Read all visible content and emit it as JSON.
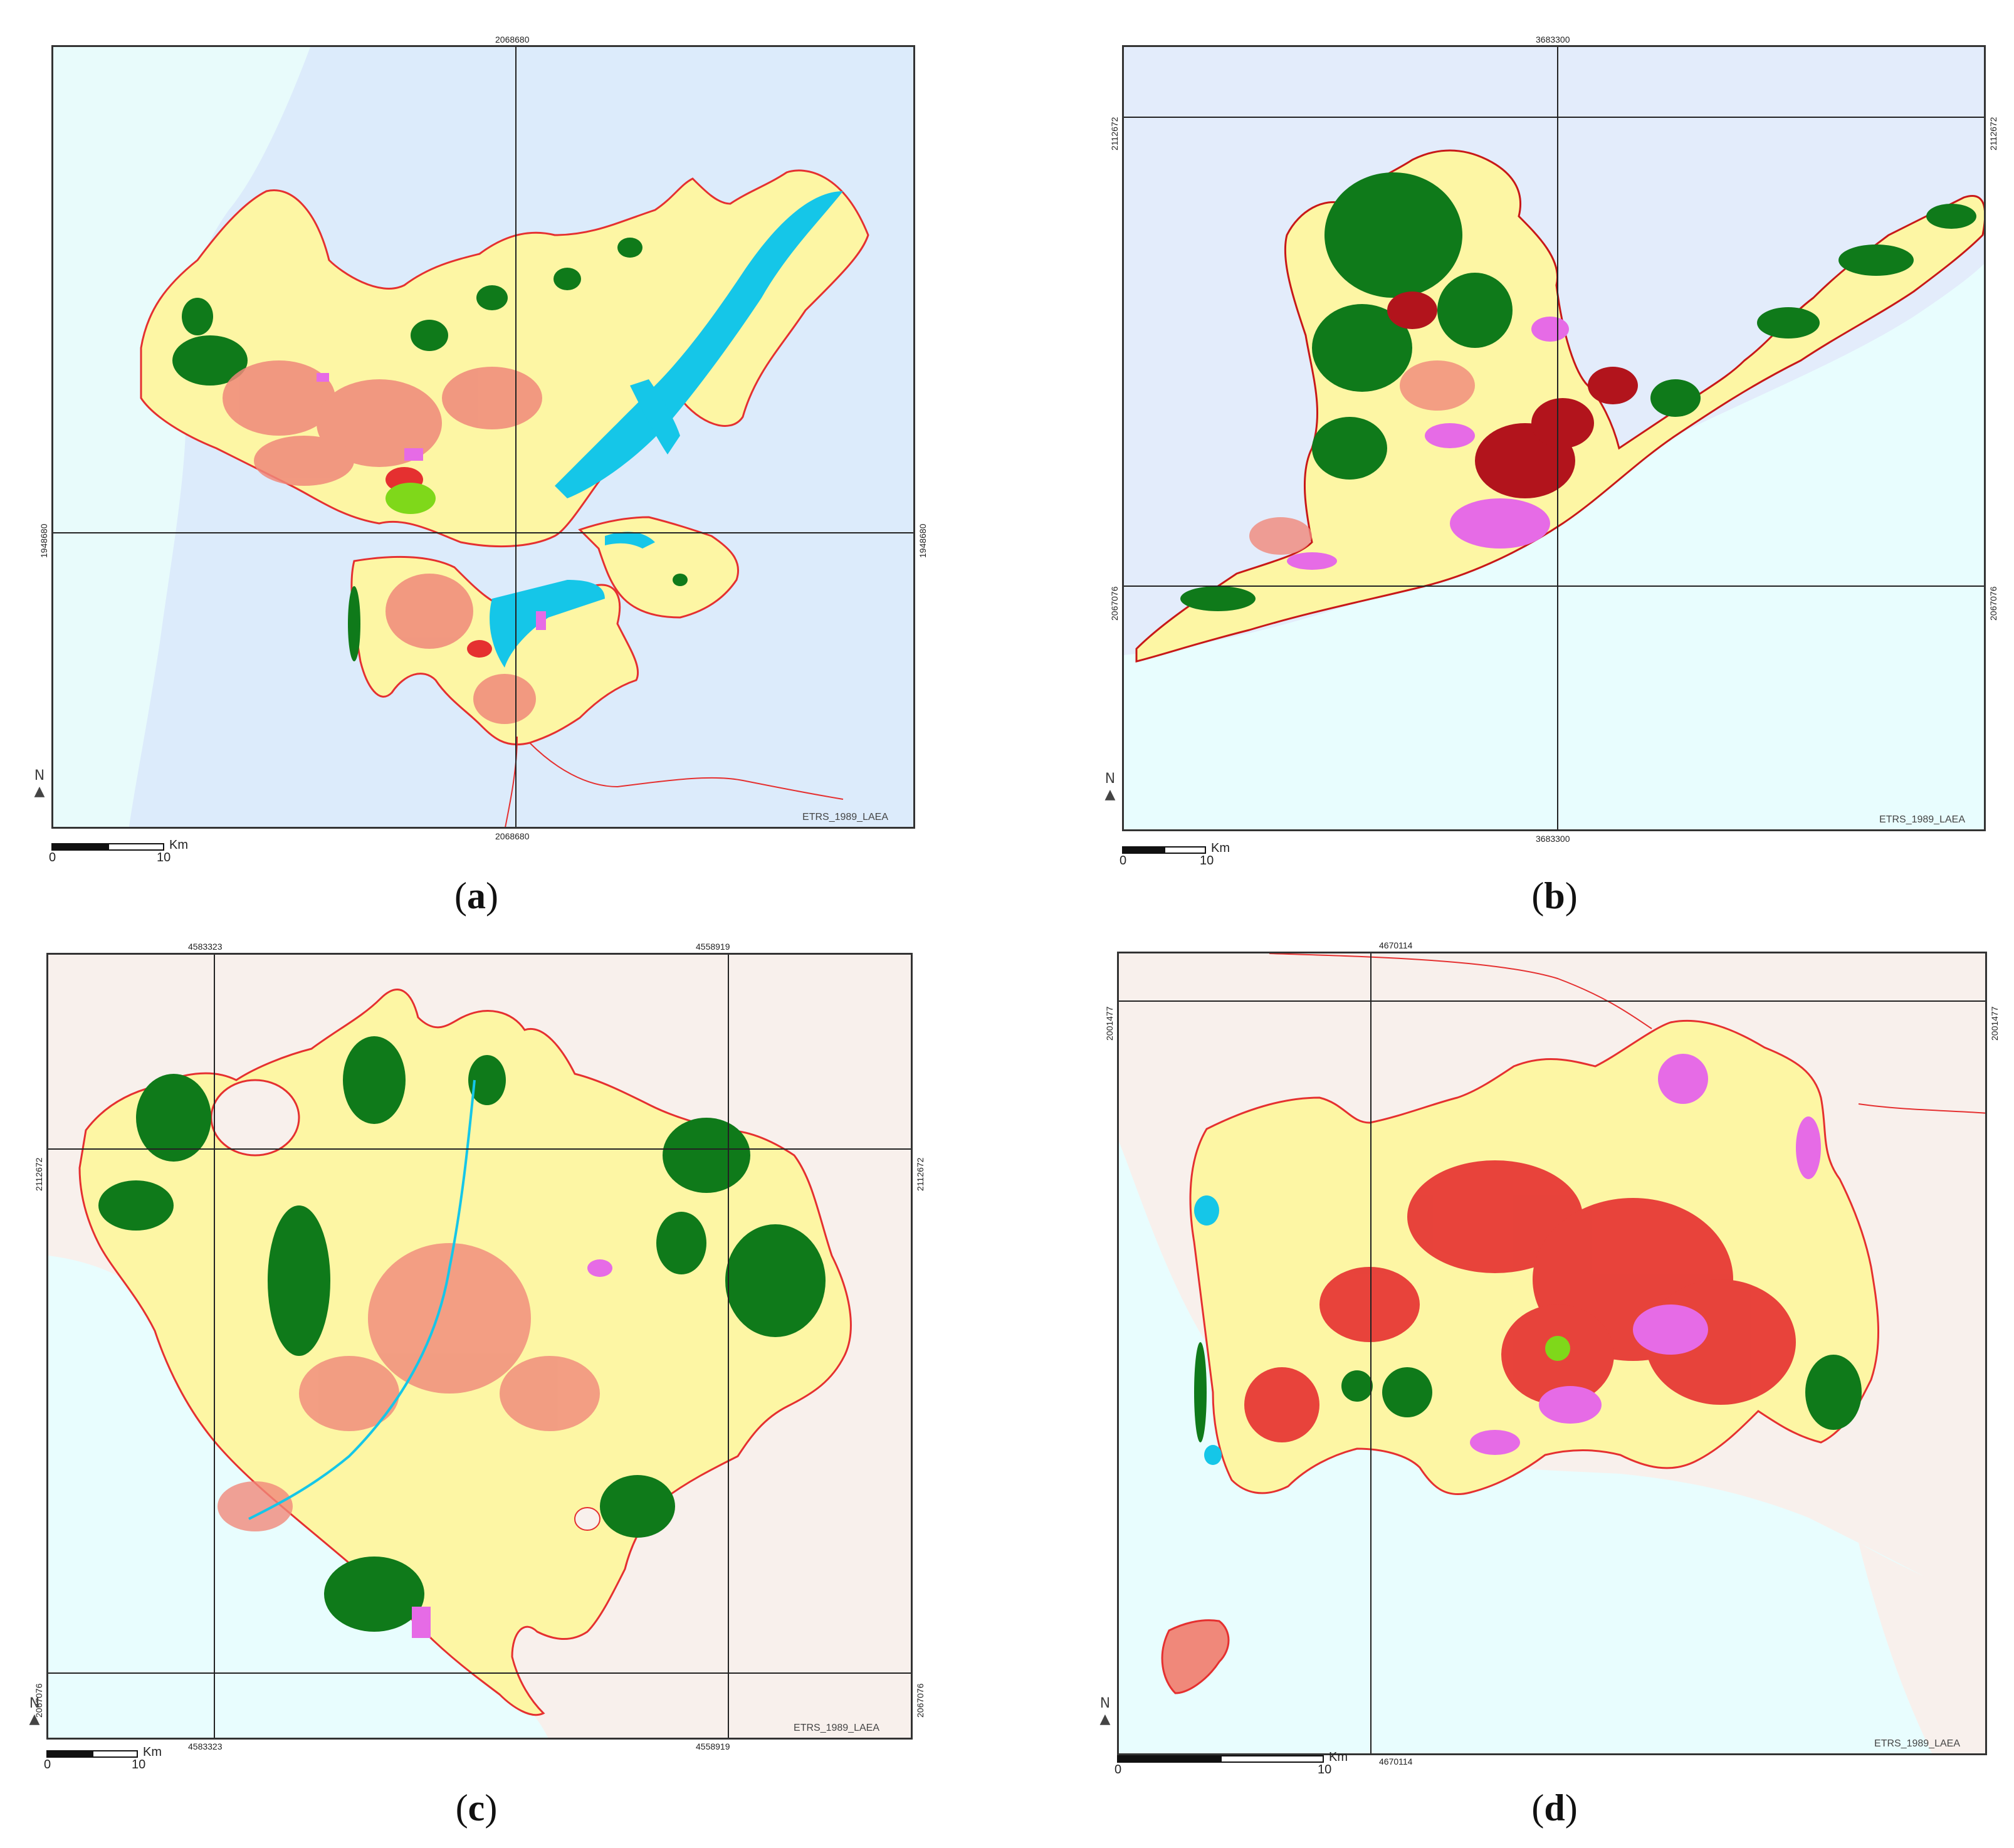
{
  "panels": [
    {
      "caption_letter": "a",
      "coord_top": "2068680",
      "coord_bottom": "2068680",
      "coord_left": "1948680",
      "coord_right": "1948680",
      "crs": "ETRS_1989_LAEA",
      "scale_unit": "Km",
      "scale_ticks": [
        "0",
        "10"
      ],
      "north_label": "N",
      "colors": {
        "sea": "#dcebfb",
        "land_out": "#e8fbfb",
        "land": "#fdf6a4"
      }
    },
    {
      "caption_letter": "b",
      "coord_top": "3683300",
      "coord_bottom": "3683300",
      "coord_left_upper": "2112672",
      "coord_left_lower": "2067076",
      "coord_right_upper": "2112672",
      "coord_right_lower": "2067076",
      "crs": "ETRS_1989_LAEA",
      "scale_unit": "Km",
      "scale_ticks": [
        "0",
        "10"
      ],
      "north_label": "N",
      "colors": {
        "sea": "#e3ecfb",
        "land_out": "#e8fdfe",
        "land": "#fdf6a4"
      }
    },
    {
      "caption_letter": "c",
      "coord_top_left": "4583323",
      "coord_top_right": "4558919",
      "coord_bottom_left": "4583323",
      "coord_bottom_right": "4558919",
      "coord_left_upper": "2112672",
      "coord_left_lower": "2067076",
      "coord_right_upper": "2112672",
      "coord_right_lower": "2067076",
      "crs": "ETRS_1989_LAEA",
      "scale_unit": "Km",
      "scale_ticks": [
        "0",
        "10"
      ],
      "north_label": "N",
      "colors": {
        "sea": "#e8fdfe",
        "land_out": "#f8f0ec",
        "land": "#fdf6a4"
      }
    },
    {
      "caption_letter": "d",
      "coord_top": "4670114",
      "coord_bottom": "4670114",
      "coord_left": "2001477",
      "coord_right": "2001477",
      "crs": "ETRS_1989_LAEA",
      "scale_unit": "Km",
      "scale_ticks": [
        "0",
        "10"
      ],
      "north_label": "N",
      "colors": {
        "sea": "#e8fdfe",
        "land_out": "#f8f0ec",
        "land": "#fdf6a4"
      }
    }
  ]
}
